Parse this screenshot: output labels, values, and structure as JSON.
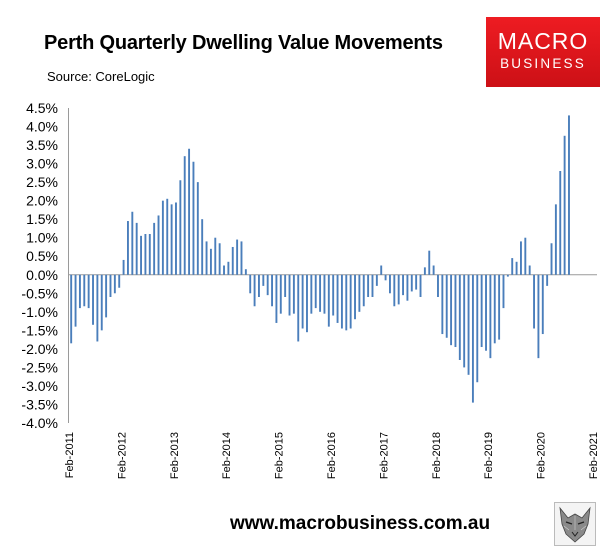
{
  "header": {
    "title": "Perth Quarterly Dwelling Value Movements",
    "source": "Source: CoreLogic"
  },
  "logo": {
    "line1": "MACRO",
    "line2": "BUSINESS",
    "color": "#e8191f"
  },
  "footer": {
    "website": "www.macrobusiness.com.au",
    "emblem_icon": "wolf-icon"
  },
  "chart_data": {
    "type": "bar",
    "title": "Perth Quarterly Dwelling Value Movements",
    "source": "CoreLogic",
    "xlabel": "",
    "ylabel": "",
    "ylim": [
      -4.0,
      4.5
    ],
    "yticks": [
      4.5,
      4.0,
      3.5,
      3.0,
      2.5,
      2.0,
      1.5,
      1.0,
      0.5,
      0.0,
      -0.5,
      -1.0,
      -1.5,
      -2.0,
      -2.5,
      -3.0,
      -3.5,
      -4.0
    ],
    "ytick_labels": [
      "4.5%",
      "4.0%",
      "3.5%",
      "3.0%",
      "2.5%",
      "2.0%",
      "1.5%",
      "1.0%",
      "0.5%",
      "0.0%",
      "-0.5%",
      "-1.0%",
      "-1.5%",
      "-2.0%",
      "-2.5%",
      "-3.0%",
      "-3.5%",
      "-4.0%"
    ],
    "xtick_labels": [
      "Feb-2011",
      "Feb-2012",
      "Feb-2013",
      "Feb-2014",
      "Feb-2015",
      "Feb-2016",
      "Feb-2017",
      "Feb-2018",
      "Feb-2019",
      "Feb-2020",
      "Feb-2021"
    ],
    "frequency": "monthly",
    "series_color": "#4a7ebb",
    "values": [
      -1.85,
      -1.4,
      -0.9,
      -0.85,
      -0.9,
      -1.35,
      -1.8,
      -1.5,
      -1.15,
      -0.6,
      -0.5,
      -0.35,
      0.4,
      1.45,
      1.7,
      1.4,
      1.05,
      1.1,
      1.1,
      1.4,
      1.6,
      2.0,
      2.05,
      1.9,
      1.95,
      2.55,
      3.2,
      3.4,
      3.05,
      2.5,
      1.5,
      0.9,
      0.7,
      1.0,
      0.85,
      0.25,
      0.35,
      0.75,
      0.95,
      0.9,
      0.15,
      -0.5,
      -0.85,
      -0.6,
      -0.3,
      -0.55,
      -0.85,
      -1.3,
      -1.05,
      -0.6,
      -1.1,
      -1.05,
      -1.8,
      -1.45,
      -1.55,
      -1.05,
      -0.9,
      -1.0,
      -1.05,
      -1.4,
      -1.1,
      -1.3,
      -1.45,
      -1.5,
      -1.45,
      -1.2,
      -1.0,
      -0.85,
      -0.6,
      -0.6,
      -0.3,
      0.25,
      -0.15,
      -0.5,
      -0.85,
      -0.8,
      -0.55,
      -0.7,
      -0.45,
      -0.4,
      -0.6,
      0.2,
      0.65,
      0.25,
      -0.6,
      -1.6,
      -1.7,
      -1.9,
      -1.95,
      -2.3,
      -2.5,
      -2.7,
      -3.45,
      -2.9,
      -1.95,
      -2.05,
      -2.25,
      -1.85,
      -1.75,
      -0.9,
      -0.05,
      0.45,
      0.35,
      0.9,
      1.0,
      0.25,
      -1.45,
      -2.25,
      -1.6,
      -0.3,
      0.85,
      1.9,
      2.8,
      3.75,
      4.3
    ]
  }
}
